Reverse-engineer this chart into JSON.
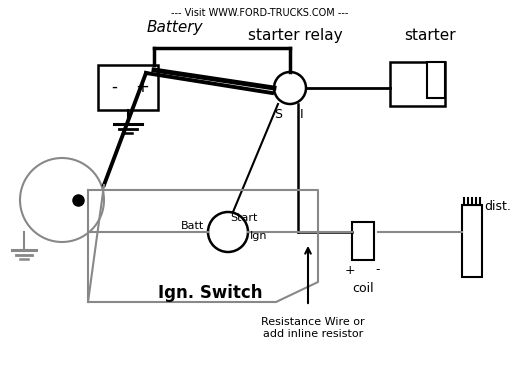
{
  "title": "--- Visit WWW.FORD-TRUCKS.COM ---",
  "battery_label": "Battery",
  "starter_relay_label": "starter relay",
  "starter_label": "starter",
  "ign_switch_label": "Ign. Switch",
  "batt_label": "Batt",
  "start_label": "Start",
  "ign_label": "Ign",
  "s_label": "S",
  "i_label": "I",
  "coil_label": "coil",
  "dist_label": "dist.",
  "resistance_label": "Resistance Wire or\nadd inline resistor",
  "bg_color": "#ffffff",
  "line_color": "#000000",
  "gray_line_color": "#888888",
  "fig_width": 5.2,
  "fig_height": 3.75
}
